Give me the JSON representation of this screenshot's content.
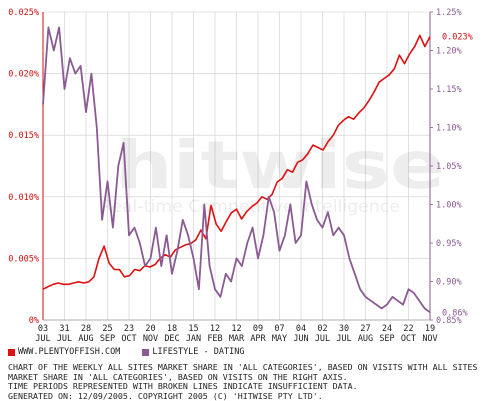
{
  "colors": {
    "series1": "#dd1111",
    "series2": "#8a5a92",
    "left_axis": "#cc1111",
    "right_axis": "#8a5a92",
    "grid": "#cccccc"
  },
  "watermark": {
    "main": "hitwise",
    "sub": "Real-time Competitive Intelligence"
  },
  "legend": [
    {
      "label": "WWW.PLENTYOFFISH.COM",
      "color": "#dd1111"
    },
    {
      "label": "LIFESTYLE - DATING",
      "color": "#8a5a92"
    }
  ],
  "caption": "CHART OF THE WEEKLY ALL SITES MARKET SHARE IN 'ALL CATEGORIES', BASED ON VISITS WITH ALL SITES\nMARKET SHARE IN 'ALL CATEGORIES', BASED ON VISITS ON THE RIGHT AXIS.\nTIME PERIODS REPRESENTED WITH BROKEN LINES INDICATE INSUFFICIENT DATA.\nGENERATED ON: 12/09/2005. COPYRIGHT 2005 (C) 'HITWISE PTY LTD'.",
  "chart_data": {
    "type": "line",
    "grid": true,
    "y_left": {
      "min": 0,
      "max": 0.025,
      "ticks": [
        "0%",
        "0.005%",
        "0.010%",
        "0.015%",
        "0.020%",
        "0.025%"
      ]
    },
    "y_right": {
      "min": 0.85,
      "max": 1.25,
      "ticks": [
        "0.85%",
        "0.90%",
        "0.95%",
        "1.00%",
        "1.05%",
        "1.10%",
        "1.15%",
        "1.20%",
        "1.25%"
      ]
    },
    "x_ticks": [
      {
        "day": "03",
        "month": "JUL"
      },
      {
        "day": "31",
        "month": "JUL"
      },
      {
        "day": "28",
        "month": "AUG"
      },
      {
        "day": "25",
        "month": "SEP"
      },
      {
        "day": "23",
        "month": "OCT"
      },
      {
        "day": "20",
        "month": "NOV"
      },
      {
        "day": "18",
        "month": "DEC"
      },
      {
        "day": "15",
        "month": "JAN"
      },
      {
        "day": "12",
        "month": "FEB"
      },
      {
        "day": "12",
        "month": "MAR"
      },
      {
        "day": "09",
        "month": "APR"
      },
      {
        "day": "07",
        "month": "MAY"
      },
      {
        "day": "04",
        "month": "JUN"
      },
      {
        "day": "02",
        "month": "JUL"
      },
      {
        "day": "30",
        "month": "JUL"
      },
      {
        "day": "27",
        "month": "AUG"
      },
      {
        "day": "24",
        "month": "SEP"
      },
      {
        "day": "22",
        "month": "OCT"
      },
      {
        "day": "19",
        "month": "NOV"
      }
    ],
    "series": [
      {
        "name": "WWW.PLENTYOFFISH.COM",
        "axis": "left",
        "end_label": "0.023%",
        "values": [
          0.0025,
          0.0027,
          0.0029,
          0.003,
          0.0029,
          0.0029,
          0.003,
          0.0031,
          0.003,
          0.0031,
          0.0035,
          0.005,
          0.006,
          0.0046,
          0.0041,
          0.0041,
          0.0035,
          0.0036,
          0.0041,
          0.004,
          0.0044,
          0.0043,
          0.0045,
          0.005,
          0.0053,
          0.0051,
          0.0057,
          0.0059,
          0.0061,
          0.0062,
          0.0065,
          0.0073,
          0.0066,
          0.0093,
          0.0078,
          0.0072,
          0.008,
          0.0087,
          0.009,
          0.0082,
          0.0088,
          0.0092,
          0.0095,
          0.01,
          0.0098,
          0.0102,
          0.0112,
          0.0115,
          0.0122,
          0.012,
          0.0128,
          0.013,
          0.0135,
          0.0142,
          0.014,
          0.0138,
          0.0145,
          0.015,
          0.0158,
          0.0162,
          0.0165,
          0.0163,
          0.0168,
          0.0172,
          0.0178,
          0.0185,
          0.0193,
          0.0196,
          0.0199,
          0.0204,
          0.0215,
          0.0208,
          0.0216,
          0.0222,
          0.0231,
          0.0222,
          0.023
        ]
      },
      {
        "name": "LIFESTYLE - DATING",
        "axis": "right",
        "end_label": "0.86%",
        "values": [
          1.13,
          1.23,
          1.2,
          1.23,
          1.15,
          1.19,
          1.17,
          1.18,
          1.12,
          1.17,
          1.1,
          0.98,
          1.03,
          0.97,
          1.05,
          1.08,
          0.96,
          0.97,
          0.95,
          0.92,
          0.93,
          0.97,
          0.92,
          0.96,
          0.91,
          0.94,
          0.98,
          0.96,
          0.93,
          0.89,
          1.0,
          0.92,
          0.89,
          0.88,
          0.91,
          0.9,
          0.93,
          0.92,
          0.95,
          0.97,
          0.93,
          0.96,
          1.01,
          0.99,
          0.94,
          0.96,
          1.0,
          0.95,
          0.96,
          1.03,
          1.0,
          0.98,
          0.97,
          0.99,
          0.96,
          0.97,
          0.96,
          0.93,
          0.91,
          0.89,
          0.88,
          0.875,
          0.87,
          0.865,
          0.87,
          0.88,
          0.875,
          0.87,
          0.89,
          0.885,
          0.875,
          0.865,
          0.86
        ]
      }
    ]
  }
}
